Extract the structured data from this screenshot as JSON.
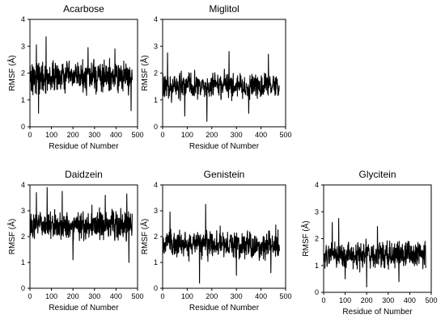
{
  "chart_data": [
    {
      "type": "line",
      "title": "Acarbose",
      "xlabel": "Residue of Number",
      "ylabel": "RMSF (Å)",
      "xlim": [
        0,
        500
      ],
      "ylim": [
        0,
        4
      ],
      "x_ticks": [
        "0",
        "100",
        "200",
        "300",
        "400",
        "500"
      ],
      "y_ticks": [
        "0",
        "1",
        "2",
        "3",
        "4"
      ],
      "grid": false,
      "color": "#000000",
      "residue_range": [
        1,
        475
      ],
      "series_summary": {
        "baseline": 1.85,
        "spread": 0.45,
        "min": 0.4,
        "max": 3.4
      },
      "peaks": [
        {
          "x": 75,
          "y": 3.35
        },
        {
          "x": 30,
          "y": 3.05
        },
        {
          "x": 270,
          "y": 2.95
        },
        {
          "x": 395,
          "y": 2.9
        },
        {
          "x": 40,
          "y": 0.5
        },
        {
          "x": 470,
          "y": 0.6
        }
      ]
    },
    {
      "type": "line",
      "title": "Miglitol",
      "xlabel": "Residue of Number",
      "ylabel": "RMSF (Å)",
      "xlim": [
        0,
        500
      ],
      "ylim": [
        0,
        4
      ],
      "x_ticks": [
        "0",
        "100",
        "200",
        "300",
        "400",
        "500"
      ],
      "y_ticks": [
        "0",
        "1",
        "2",
        "3",
        "4"
      ],
      "grid": false,
      "color": "#000000",
      "residue_range": [
        1,
        475
      ],
      "series_summary": {
        "baseline": 1.5,
        "spread": 0.4,
        "min": 0.15,
        "max": 2.85
      },
      "peaks": [
        {
          "x": 270,
          "y": 2.8
        },
        {
          "x": 20,
          "y": 2.75
        },
        {
          "x": 430,
          "y": 2.7
        },
        {
          "x": 180,
          "y": 0.2
        },
        {
          "x": 90,
          "y": 0.4
        },
        {
          "x": 350,
          "y": 0.5
        }
      ]
    },
    {
      "type": "line",
      "title": "Daidzein",
      "xlabel": "Residue of Number",
      "ylabel": "RMSF (Å)",
      "xlim": [
        0,
        500
      ],
      "ylim": [
        0,
        4
      ],
      "x_ticks": [
        "0",
        "100",
        "200",
        "300",
        "400",
        "500"
      ],
      "y_ticks": [
        "0",
        "1",
        "2",
        "3",
        "4"
      ],
      "grid": false,
      "color": "#000000",
      "residue_range": [
        1,
        475
      ],
      "series_summary": {
        "baseline": 2.45,
        "spread": 0.45,
        "min": 0.9,
        "max": 3.95
      },
      "peaks": [
        {
          "x": 80,
          "y": 3.9
        },
        {
          "x": 150,
          "y": 3.75
        },
        {
          "x": 30,
          "y": 3.7
        },
        {
          "x": 450,
          "y": 3.65
        },
        {
          "x": 350,
          "y": 3.6
        },
        {
          "x": 200,
          "y": 1.1
        },
        {
          "x": 460,
          "y": 1.0
        }
      ]
    },
    {
      "type": "line",
      "title": "Genistein",
      "xlabel": "Residue of Number",
      "ylabel": "RMSF (Å)",
      "xlim": [
        0,
        500
      ],
      "ylim": [
        0,
        4
      ],
      "x_ticks": [
        "0",
        "100",
        "200",
        "300",
        "400",
        "500"
      ],
      "y_ticks": [
        "0",
        "1",
        "2",
        "3",
        "4"
      ],
      "grid": false,
      "color": "#000000",
      "residue_range": [
        1,
        475
      ],
      "series_summary": {
        "baseline": 1.7,
        "spread": 0.45,
        "min": 0.1,
        "max": 3.25
      },
      "peaks": [
        {
          "x": 175,
          "y": 3.25
        },
        {
          "x": 30,
          "y": 2.95
        },
        {
          "x": 460,
          "y": 2.45
        },
        {
          "x": 150,
          "y": 0.2
        },
        {
          "x": 300,
          "y": 0.5
        },
        {
          "x": 440,
          "y": 0.6
        }
      ]
    },
    {
      "type": "line",
      "title": "Glycitein",
      "xlabel": "Residue of Number",
      "ylabel": "RMSF (Å)",
      "xlim": [
        0,
        500
      ],
      "ylim": [
        0,
        4
      ],
      "x_ticks": [
        "0",
        "100",
        "200",
        "300",
        "400",
        "500"
      ],
      "y_ticks": [
        "0",
        "1",
        "2",
        "3",
        "4"
      ],
      "grid": false,
      "color": "#000000",
      "residue_range": [
        1,
        475
      ],
      "series_summary": {
        "baseline": 1.4,
        "spread": 0.4,
        "min": 0.2,
        "max": 2.75
      },
      "peaks": [
        {
          "x": 70,
          "y": 2.75
        },
        {
          "x": 40,
          "y": 2.6
        },
        {
          "x": 250,
          "y": 2.45
        },
        {
          "x": 200,
          "y": 0.2
        },
        {
          "x": 350,
          "y": 0.4
        },
        {
          "x": 100,
          "y": 0.5
        }
      ]
    }
  ]
}
